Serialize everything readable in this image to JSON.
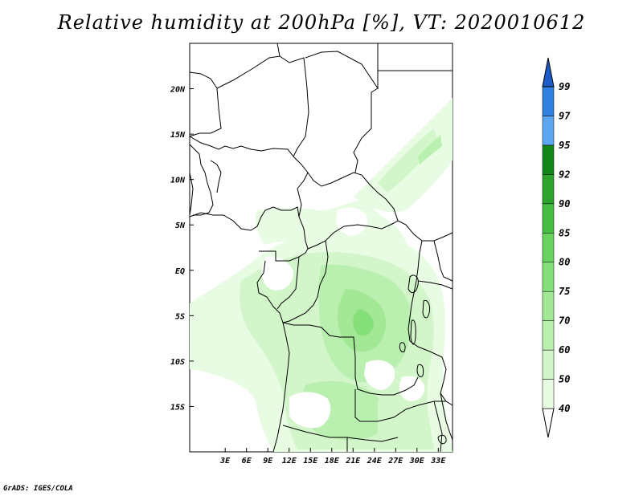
{
  "title": "Relative humidity at 200hPa [%], VT: 2020010612",
  "credit": "GrADS: IGES/COLA",
  "map": {
    "lon_range": [
      -2,
      35
    ],
    "lat_range": [
      -20,
      25
    ],
    "lat_labels": [
      "20N",
      "15N",
      "10N",
      "5N",
      "EQ",
      "5S",
      "10S",
      "15S"
    ],
    "lat_values": [
      20,
      15,
      10,
      5,
      0,
      -5,
      -10,
      -15
    ],
    "lon_labels": [
      "3E",
      "6E",
      "9E",
      "12E",
      "15E",
      "18E",
      "21E",
      "24E",
      "27E",
      "30E",
      "33E"
    ],
    "lon_values": [
      3,
      6,
      9,
      12,
      15,
      18,
      21,
      24,
      27,
      30,
      33
    ]
  },
  "colorbar": {
    "levels": [
      "40",
      "50",
      "60",
      "70",
      "75",
      "80",
      "85",
      "90",
      "92",
      "95",
      "97",
      "99"
    ],
    "colors": [
      "#ffffff",
      "#e8fbe3",
      "#d2f5ca",
      "#b9efaf",
      "#a3e894",
      "#86e07a",
      "#68d35e",
      "#47be43",
      "#2da22d",
      "#13861a",
      "#5aa6f0",
      "#2f7fe0",
      "#1c5cc8"
    ]
  }
}
